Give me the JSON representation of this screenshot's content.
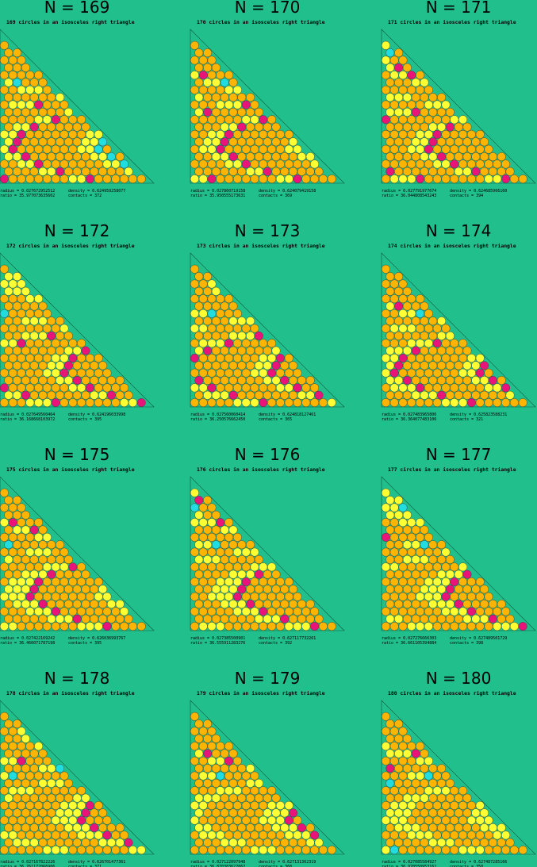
{
  "panels": [
    {
      "title": "N = 169",
      "subtitle": "169 circles in an isosceles right triangle",
      "radius": "radius =  0.027672952512",
      "density": "density = 0.624959258077",
      "ratio": "ratio  = 35.977073635602",
      "contacts": "contacts = 372"
    },
    {
      "title": "N = 170",
      "subtitle": "170 circles in an isosceles right triangle",
      "radius": "radius =  0.027860719158",
      "density": "density = 0.624079419158",
      "ratio": "ratio  = 35.950555173631",
      "contacts": "contacts = 369"
    },
    {
      "title": "N = 171",
      "subtitle": "171 circles in an isosceles right triangle",
      "radius": "radius =  0.027791977674",
      "density": "density = 0.624685966160",
      "ratio": "ratio  = 36.044808543243",
      "contacts": "contacts = 394"
    },
    {
      "title": "N = 172",
      "subtitle": "172 circles in an isosceles right triangle",
      "radius": "radius =  0.027649560464",
      "density": "density = 0.624196033998",
      "ratio": "ratio  = 36.168668103972",
      "contacts": "contacts = 395"
    },
    {
      "title": "N = 173",
      "subtitle": "173 circles in an isosceles right triangle",
      "radius": "radius =  0.027560060414",
      "density": "density = 0.624818127461",
      "ratio": "ratio  = 36.250576662450",
      "contacts": "contacts = 365"
    },
    {
      "title": "N = 174",
      "subtitle": "174 circles in an isosceles right triangle",
      "radius": "radius =  0.027483965806",
      "density": "density = 0.625823588231",
      "ratio": "ratio  = 36.364077483106",
      "contacts": "contacts = 321"
    },
    {
      "title": "N = 175",
      "subtitle": "175 circles in an isosceles right triangle",
      "radius": "radius =  0.027422169242",
      "density": "density = 0.626036993767",
      "ratio": "ratio  = 36.466071787198",
      "contacts": "contacts = 395"
    },
    {
      "title": "N = 176",
      "subtitle": "176 circles in an isosceles right triangle",
      "radius": "radius =  0.027385500901",
      "density": "density = 0.627117732261",
      "ratio": "ratio  = 36.555911283276",
      "contacts": "contacts = 392"
    },
    {
      "title": "N = 177",
      "subtitle": "177 circles in an isosceles right triangle",
      "radius": "radius =  0.027276666303",
      "density": "density = 0.627489501729",
      "ratio": "ratio  = 36.661105394884",
      "contacts": "contacts = 398"
    },
    {
      "title": "N = 178",
      "subtitle": "178 circles in an isosceles right triangle",
      "radius": "radius =  0.027167822226",
      "density": "density = 0.626701477361",
      "ratio": "ratio  = 36.761172066906",
      "contacts": "contacts = 371"
    },
    {
      "title": "N = 179",
      "subtitle": "179 circles in an isosceles right triangle",
      "radius": "radius =  0.027122097948",
      "density": "density = 0.627131362319",
      "ratio": "ratio  = 36.870383627067",
      "contacts": "contacts = 368"
    },
    {
      "title": "N = 180",
      "subtitle": "180 circles in an isosceles right triangle",
      "radius": "radius =  0.027085584927",
      "density": "density = 0.627487285166",
      "ratio": "ratio  = 36.970550953162",
      "contacts": "contacts = 350"
    }
  ]
}
